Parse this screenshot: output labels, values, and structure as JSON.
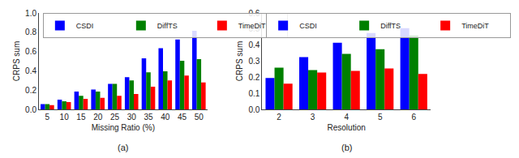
{
  "chart_data": [
    {
      "type": "bar",
      "subtitle": "(a)",
      "xlabel": "Missing Ratio (%)",
      "ylabel": "CRPS sum",
      "categories": [
        5,
        10,
        15,
        20,
        25,
        30,
        35,
        40,
        45,
        50
      ],
      "series": [
        {
          "name": "CSDI",
          "color": "#0000ff",
          "values": [
            0.055,
            0.1,
            0.185,
            0.205,
            0.265,
            0.335,
            0.53,
            0.635,
            0.725,
            0.815
          ]
        },
        {
          "name": "DiffTS",
          "color": "#008000",
          "values": [
            0.055,
            0.085,
            0.14,
            0.185,
            0.265,
            0.3,
            0.385,
            0.395,
            0.505,
            0.52
          ]
        },
        {
          "name": "TimeDiT",
          "color": "#ff0000",
          "values": [
            0.045,
            0.075,
            0.11,
            0.12,
            0.14,
            0.16,
            0.235,
            0.3,
            0.35,
            0.28
          ]
        }
      ],
      "ylim": [
        0.0,
        1.0
      ],
      "yticks": [
        {
          "value": 0.0,
          "label": "0.0"
        },
        0.2,
        0.4,
        0.6,
        0.8,
        {
          "value": 1.0,
          "label": "1.0"
        }
      ],
      "grid": false,
      "legend": "upper left"
    },
    {
      "type": "bar",
      "subtitle": "(b)",
      "xlabel": "Resolution",
      "ylabel": "CRPS sum",
      "categories": [
        2,
        3,
        4,
        5,
        6
      ],
      "series": [
        {
          "name": "CSDI",
          "color": "#0000ff",
          "values": [
            0.195,
            0.325,
            0.415,
            0.475,
            0.505
          ]
        },
        {
          "name": "DiffTS",
          "color": "#008000",
          "values": [
            0.26,
            0.245,
            0.345,
            0.375,
            0.46
          ]
        },
        {
          "name": "TimeDiT",
          "color": "#ff0000",
          "values": [
            0.16,
            0.23,
            0.24,
            0.255,
            0.22
          ]
        }
      ],
      "ylim": [
        0.0,
        0.6
      ],
      "yticks": [
        {
          "value": 0.0,
          "label": "0.0"
        },
        0.1,
        0.2,
        0.3,
        0.4,
        0.5,
        0.6
      ],
      "grid": false,
      "legend": "upper left"
    }
  ]
}
